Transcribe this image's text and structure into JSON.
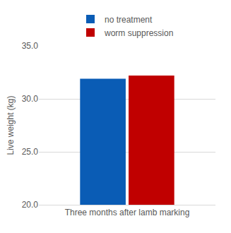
{
  "chart_data": {
    "type": "bar",
    "categories": [
      "Three months after lamb marking"
    ],
    "series": [
      {
        "name": "no treatment",
        "color": "#0a5cb5",
        "values": [
          31.9
        ]
      },
      {
        "name": "worm suppression",
        "color": "#c00000",
        "values": [
          32.2
        ]
      }
    ],
    "y_label": "Live weight (kg)",
    "ylim": [
      20,
      35
    ],
    "yticks": [
      {
        "value": 20,
        "label": "20.0"
      },
      {
        "value": 25,
        "label": "25.0"
      },
      {
        "value": 30,
        "label": "30.0"
      },
      {
        "value": 35,
        "label": "35.0"
      }
    ],
    "grid": true,
    "legend": "top"
  }
}
